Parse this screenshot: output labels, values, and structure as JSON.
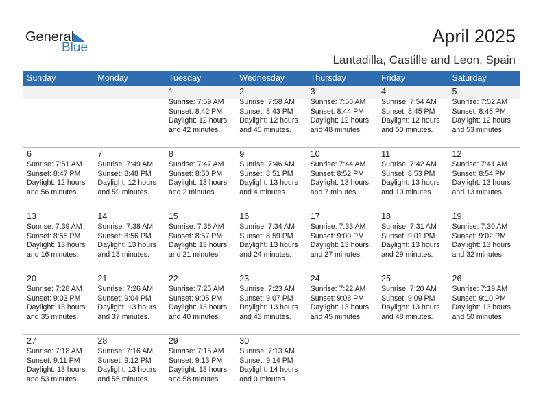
{
  "logo": {
    "general": "General",
    "blue": "Blue"
  },
  "title": "April 2025",
  "subtitle": "Lantadilla, Castille and Leon, Spain",
  "colors": {
    "header": "#2e6db0",
    "brand": "#2f79c0"
  },
  "weekdays": [
    "Sunday",
    "Monday",
    "Tuesday",
    "Wednesday",
    "Thursday",
    "Friday",
    "Saturday"
  ],
  "weeks": [
    [
      null,
      null,
      {
        "day": "1",
        "sunrise": "Sunrise: 7:59 AM",
        "sunset": "Sunset: 8:42 PM",
        "daylight": "Daylight: 12 hours",
        "minutes": "and 42 minutes."
      },
      {
        "day": "2",
        "sunrise": "Sunrise: 7:58 AM",
        "sunset": "Sunset: 8:43 PM",
        "daylight": "Daylight: 12 hours",
        "minutes": "and 45 minutes."
      },
      {
        "day": "3",
        "sunrise": "Sunrise: 7:56 AM",
        "sunset": "Sunset: 8:44 PM",
        "daylight": "Daylight: 12 hours",
        "minutes": "and 48 minutes."
      },
      {
        "day": "4",
        "sunrise": "Sunrise: 7:54 AM",
        "sunset": "Sunset: 8:45 PM",
        "daylight": "Daylight: 12 hours",
        "minutes": "and 50 minutes."
      },
      {
        "day": "5",
        "sunrise": "Sunrise: 7:52 AM",
        "sunset": "Sunset: 8:46 PM",
        "daylight": "Daylight: 12 hours",
        "minutes": "and 53 minutes."
      }
    ],
    [
      {
        "day": "6",
        "sunrise": "Sunrise: 7:51 AM",
        "sunset": "Sunset: 8:47 PM",
        "daylight": "Daylight: 12 hours",
        "minutes": "and 56 minutes."
      },
      {
        "day": "7",
        "sunrise": "Sunrise: 7:49 AM",
        "sunset": "Sunset: 8:48 PM",
        "daylight": "Daylight: 12 hours",
        "minutes": "and 59 minutes."
      },
      {
        "day": "8",
        "sunrise": "Sunrise: 7:47 AM",
        "sunset": "Sunset: 8:50 PM",
        "daylight": "Daylight: 13 hours",
        "minutes": "and 2 minutes."
      },
      {
        "day": "9",
        "sunrise": "Sunrise: 7:46 AM",
        "sunset": "Sunset: 8:51 PM",
        "daylight": "Daylight: 13 hours",
        "minutes": "and 4 minutes."
      },
      {
        "day": "10",
        "sunrise": "Sunrise: 7:44 AM",
        "sunset": "Sunset: 8:52 PM",
        "daylight": "Daylight: 13 hours",
        "minutes": "and 7 minutes."
      },
      {
        "day": "11",
        "sunrise": "Sunrise: 7:42 AM",
        "sunset": "Sunset: 8:53 PM",
        "daylight": "Daylight: 13 hours",
        "minutes": "and 10 minutes."
      },
      {
        "day": "12",
        "sunrise": "Sunrise: 7:41 AM",
        "sunset": "Sunset: 8:54 PM",
        "daylight": "Daylight: 13 hours",
        "minutes": "and 13 minutes."
      }
    ],
    [
      {
        "day": "13",
        "sunrise": "Sunrise: 7:39 AM",
        "sunset": "Sunset: 8:55 PM",
        "daylight": "Daylight: 13 hours",
        "minutes": "and 16 minutes."
      },
      {
        "day": "14",
        "sunrise": "Sunrise: 7:38 AM",
        "sunset": "Sunset: 8:56 PM",
        "daylight": "Daylight: 13 hours",
        "minutes": "and 18 minutes."
      },
      {
        "day": "15",
        "sunrise": "Sunrise: 7:36 AM",
        "sunset": "Sunset: 8:57 PM",
        "daylight": "Daylight: 13 hours",
        "minutes": "and 21 minutes."
      },
      {
        "day": "16",
        "sunrise": "Sunrise: 7:34 AM",
        "sunset": "Sunset: 8:59 PM",
        "daylight": "Daylight: 13 hours",
        "minutes": "and 24 minutes."
      },
      {
        "day": "17",
        "sunrise": "Sunrise: 7:33 AM",
        "sunset": "Sunset: 9:00 PM",
        "daylight": "Daylight: 13 hours",
        "minutes": "and 27 minutes."
      },
      {
        "day": "18",
        "sunrise": "Sunrise: 7:31 AM",
        "sunset": "Sunset: 9:01 PM",
        "daylight": "Daylight: 13 hours",
        "minutes": "and 29 minutes."
      },
      {
        "day": "19",
        "sunrise": "Sunrise: 7:30 AM",
        "sunset": "Sunset: 9:02 PM",
        "daylight": "Daylight: 13 hours",
        "minutes": "and 32 minutes."
      }
    ],
    [
      {
        "day": "20",
        "sunrise": "Sunrise: 7:28 AM",
        "sunset": "Sunset: 9:03 PM",
        "daylight": "Daylight: 13 hours",
        "minutes": "and 35 minutes."
      },
      {
        "day": "21",
        "sunrise": "Sunrise: 7:26 AM",
        "sunset": "Sunset: 9:04 PM",
        "daylight": "Daylight: 13 hours",
        "minutes": "and 37 minutes."
      },
      {
        "day": "22",
        "sunrise": "Sunrise: 7:25 AM",
        "sunset": "Sunset: 9:05 PM",
        "daylight": "Daylight: 13 hours",
        "minutes": "and 40 minutes."
      },
      {
        "day": "23",
        "sunrise": "Sunrise: 7:23 AM",
        "sunset": "Sunset: 9:07 PM",
        "daylight": "Daylight: 13 hours",
        "minutes": "and 43 minutes."
      },
      {
        "day": "24",
        "sunrise": "Sunrise: 7:22 AM",
        "sunset": "Sunset: 9:08 PM",
        "daylight": "Daylight: 13 hours",
        "minutes": "and 45 minutes."
      },
      {
        "day": "25",
        "sunrise": "Sunrise: 7:20 AM",
        "sunset": "Sunset: 9:09 PM",
        "daylight": "Daylight: 13 hours",
        "minutes": "and 48 minutes."
      },
      {
        "day": "26",
        "sunrise": "Sunrise: 7:19 AM",
        "sunset": "Sunset: 9:10 PM",
        "daylight": "Daylight: 13 hours",
        "minutes": "and 50 minutes."
      }
    ],
    [
      {
        "day": "27",
        "sunrise": "Sunrise: 7:18 AM",
        "sunset": "Sunset: 9:11 PM",
        "daylight": "Daylight: 13 hours",
        "minutes": "and 53 minutes."
      },
      {
        "day": "28",
        "sunrise": "Sunrise: 7:16 AM",
        "sunset": "Sunset: 9:12 PM",
        "daylight": "Daylight: 13 hours",
        "minutes": "and 55 minutes."
      },
      {
        "day": "29",
        "sunrise": "Sunrise: 7:15 AM",
        "sunset": "Sunset: 9:13 PM",
        "daylight": "Daylight: 13 hours",
        "minutes": "and 58 minutes."
      },
      {
        "day": "30",
        "sunrise": "Sunrise: 7:13 AM",
        "sunset": "Sunset: 9:14 PM",
        "daylight": "Daylight: 14 hours",
        "minutes": "and 0 minutes."
      },
      null,
      null,
      null
    ]
  ]
}
